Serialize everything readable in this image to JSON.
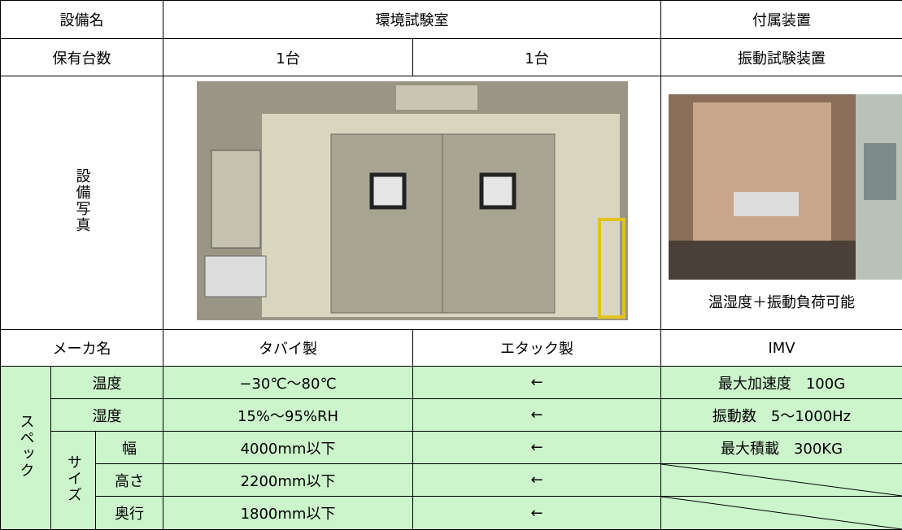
{
  "table": {
    "header": [
      "設備名",
      "環境試験室",
      "付属装置"
    ],
    "count_row": [
      "保有台数",
      "1台",
      "1台",
      "振動試験装置"
    ],
    "photo_row": {
      "label": "設備写真",
      "caption": "温湿度＋振動負荷可能"
    },
    "maker_row": [
      "メーカ名",
      "タバイ製",
      "エタック製",
      "IMV"
    ],
    "spec_label": "スペック",
    "size_label": "サイズ",
    "spec_rows": [
      {
        "item": "温度",
        "tabai": "−30℃～80℃",
        "etak": "←",
        "option": "最大加速度　100G"
      },
      {
        "item": "湿度",
        "tabai": "15%～95%RH",
        "etak": "←",
        "option": "振動数　5～1000Hz"
      },
      {
        "item": "幅",
        "tabai": "4000mm以下",
        "etak": "←",
        "option": "最大積載　300KG"
      },
      {
        "item": "高さ",
        "tabai": "2200mm以下",
        "etak": "←"
      },
      {
        "item": "奥行",
        "tabai": "1800mm以下",
        "etak": "←"
      }
    ]
  }
}
